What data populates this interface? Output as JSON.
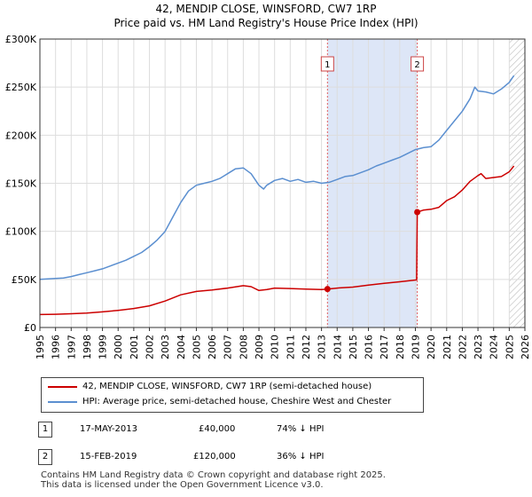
{
  "header": {
    "title": "42, MENDIP CLOSE, WINSFORD, CW7 1RP",
    "subtitle": "Price paid vs. HM Land Registry's House Price Index (HPI)"
  },
  "colors": {
    "price_line": "#cc0000",
    "hpi_line": "#5b8fd0",
    "shade": "#dde6f7",
    "grid": "#dddddd",
    "marker_line": "#e06060",
    "hatch": "#bbbbbb"
  },
  "chart_data": {
    "type": "line",
    "title": "Price paid vs. HM Land Registry's House Price Index (HPI)",
    "xlabel": "",
    "ylabel": "",
    "xlim": [
      1995,
      2026
    ],
    "ylim": [
      0,
      300000
    ],
    "grid": true,
    "y_ticks": [
      {
        "value": 0,
        "label": "£0"
      },
      {
        "value": 50000,
        "label": "£50K"
      },
      {
        "value": 100000,
        "label": "£100K"
      },
      {
        "value": 150000,
        "label": "£150K"
      },
      {
        "value": 200000,
        "label": "£200K"
      },
      {
        "value": 250000,
        "label": "£250K"
      },
      {
        "value": 300000,
        "label": "£300K"
      }
    ],
    "x_ticks": [
      "1995",
      "1996",
      "1997",
      "1998",
      "1999",
      "2000",
      "2001",
      "2002",
      "2003",
      "2004",
      "2005",
      "2006",
      "2007",
      "2008",
      "2009",
      "2010",
      "2011",
      "2012",
      "2013",
      "2014",
      "2015",
      "2016",
      "2017",
      "2018",
      "2019",
      "2020",
      "2021",
      "2022",
      "2023",
      "2024",
      "2025",
      "2026"
    ],
    "shaded_range": [
      2013.38,
      2019.12
    ],
    "future_hatch_from": 2025.0,
    "series": [
      {
        "name": "42, MENDIP CLOSE, WINSFORD, CW7 1RP (semi-detached house)",
        "color": "#cc0000",
        "points": [
          [
            1995.0,
            13500
          ],
          [
            1996.0,
            13800
          ],
          [
            1997.0,
            14300
          ],
          [
            1998.0,
            15000
          ],
          [
            1999.0,
            16200
          ],
          [
            2000.0,
            17800
          ],
          [
            2001.0,
            19800
          ],
          [
            2002.0,
            22500
          ],
          [
            2003.0,
            27500
          ],
          [
            2004.0,
            34000
          ],
          [
            2005.0,
            37500
          ],
          [
            2006.0,
            39000
          ],
          [
            2007.0,
            41000
          ],
          [
            2008.0,
            43500
          ],
          [
            2008.5,
            42500
          ],
          [
            2009.0,
            38500
          ],
          [
            2009.5,
            39500
          ],
          [
            2010.0,
            41000
          ],
          [
            2011.0,
            40500
          ],
          [
            2012.0,
            40000
          ],
          [
            2013.0,
            39500
          ],
          [
            2013.38,
            40000
          ],
          [
            2014.0,
            41000
          ],
          [
            2015.0,
            42000
          ],
          [
            2016.0,
            44000
          ],
          [
            2017.0,
            46000
          ],
          [
            2018.0,
            47500
          ],
          [
            2019.08,
            49500
          ],
          [
            2019.12,
            120000
          ],
          [
            2019.5,
            122000
          ],
          [
            2020.0,
            123000
          ],
          [
            2020.5,
            125000
          ],
          [
            2021.0,
            132000
          ],
          [
            2021.5,
            136000
          ],
          [
            2022.0,
            143000
          ],
          [
            2022.5,
            152000
          ],
          [
            2023.0,
            158000
          ],
          [
            2023.2,
            160000
          ],
          [
            2023.5,
            155000
          ],
          [
            2024.0,
            156000
          ],
          [
            2024.5,
            157000
          ],
          [
            2025.0,
            162000
          ],
          [
            2025.3,
            168000
          ]
        ]
      },
      {
        "name": "HPI: Average price, semi-detached house, Cheshire West and Chester",
        "color": "#5b8fd0",
        "points": [
          [
            1995.0,
            50000
          ],
          [
            1995.5,
            50500
          ],
          [
            1996.0,
            51000
          ],
          [
            1996.5,
            51500
          ],
          [
            1997.0,
            53000
          ],
          [
            1997.5,
            55000
          ],
          [
            1998.0,
            57000
          ],
          [
            1998.5,
            59000
          ],
          [
            1999.0,
            61000
          ],
          [
            1999.5,
            64000
          ],
          [
            2000.0,
            67000
          ],
          [
            2000.5,
            70000
          ],
          [
            2001.0,
            74000
          ],
          [
            2001.5,
            78000
          ],
          [
            2002.0,
            84000
          ],
          [
            2002.5,
            91000
          ],
          [
            2003.0,
            100000
          ],
          [
            2003.5,
            115000
          ],
          [
            2004.0,
            130000
          ],
          [
            2004.5,
            142000
          ],
          [
            2005.0,
            148000
          ],
          [
            2005.5,
            150000
          ],
          [
            2006.0,
            152000
          ],
          [
            2006.5,
            155000
          ],
          [
            2007.0,
            160000
          ],
          [
            2007.5,
            165000
          ],
          [
            2008.0,
            166000
          ],
          [
            2008.5,
            160000
          ],
          [
            2009.0,
            148000
          ],
          [
            2009.3,
            144000
          ],
          [
            2009.5,
            148000
          ],
          [
            2010.0,
            153000
          ],
          [
            2010.5,
            155000
          ],
          [
            2011.0,
            152000
          ],
          [
            2011.5,
            154000
          ],
          [
            2012.0,
            151000
          ],
          [
            2012.5,
            152000
          ],
          [
            2013.0,
            150000
          ],
          [
            2013.5,
            151000
          ],
          [
            2014.0,
            154000
          ],
          [
            2014.5,
            157000
          ],
          [
            2015.0,
            158000
          ],
          [
            2015.5,
            161000
          ],
          [
            2016.0,
            164000
          ],
          [
            2016.5,
            168000
          ],
          [
            2017.0,
            171000
          ],
          [
            2017.5,
            174000
          ],
          [
            2018.0,
            177000
          ],
          [
            2018.5,
            181000
          ],
          [
            2019.0,
            185000
          ],
          [
            2019.5,
            187000
          ],
          [
            2020.0,
            188000
          ],
          [
            2020.5,
            195000
          ],
          [
            2021.0,
            205000
          ],
          [
            2021.5,
            215000
          ],
          [
            2022.0,
            225000
          ],
          [
            2022.5,
            238000
          ],
          [
            2022.8,
            250000
          ],
          [
            2023.0,
            246000
          ],
          [
            2023.5,
            245000
          ],
          [
            2024.0,
            243000
          ],
          [
            2024.5,
            248000
          ],
          [
            2025.0,
            255000
          ],
          [
            2025.3,
            262000
          ]
        ]
      }
    ],
    "annotations": [
      {
        "label": "1",
        "x": 2013.38,
        "value": 40000
      },
      {
        "label": "2",
        "x": 2019.12,
        "value": 120000
      }
    ]
  },
  "legend": {
    "items": [
      {
        "label": "42, MENDIP CLOSE, WINSFORD, CW7 1RP (semi-detached house)",
        "color": "#cc0000"
      },
      {
        "label": "HPI: Average price, semi-detached house, Cheshire West and Chester",
        "color": "#5b8fd0"
      }
    ]
  },
  "transactions": [
    {
      "num": "1",
      "date": "17-MAY-2013",
      "price": "£40,000",
      "hpi": "74% ↓ HPI"
    },
    {
      "num": "2",
      "date": "15-FEB-2019",
      "price": "£120,000",
      "hpi": "36% ↓ HPI"
    }
  ],
  "footer": {
    "line1": "Contains HM Land Registry data © Crown copyright and database right 2025.",
    "line2": "This data is licensed under the Open Government Licence v3.0."
  }
}
